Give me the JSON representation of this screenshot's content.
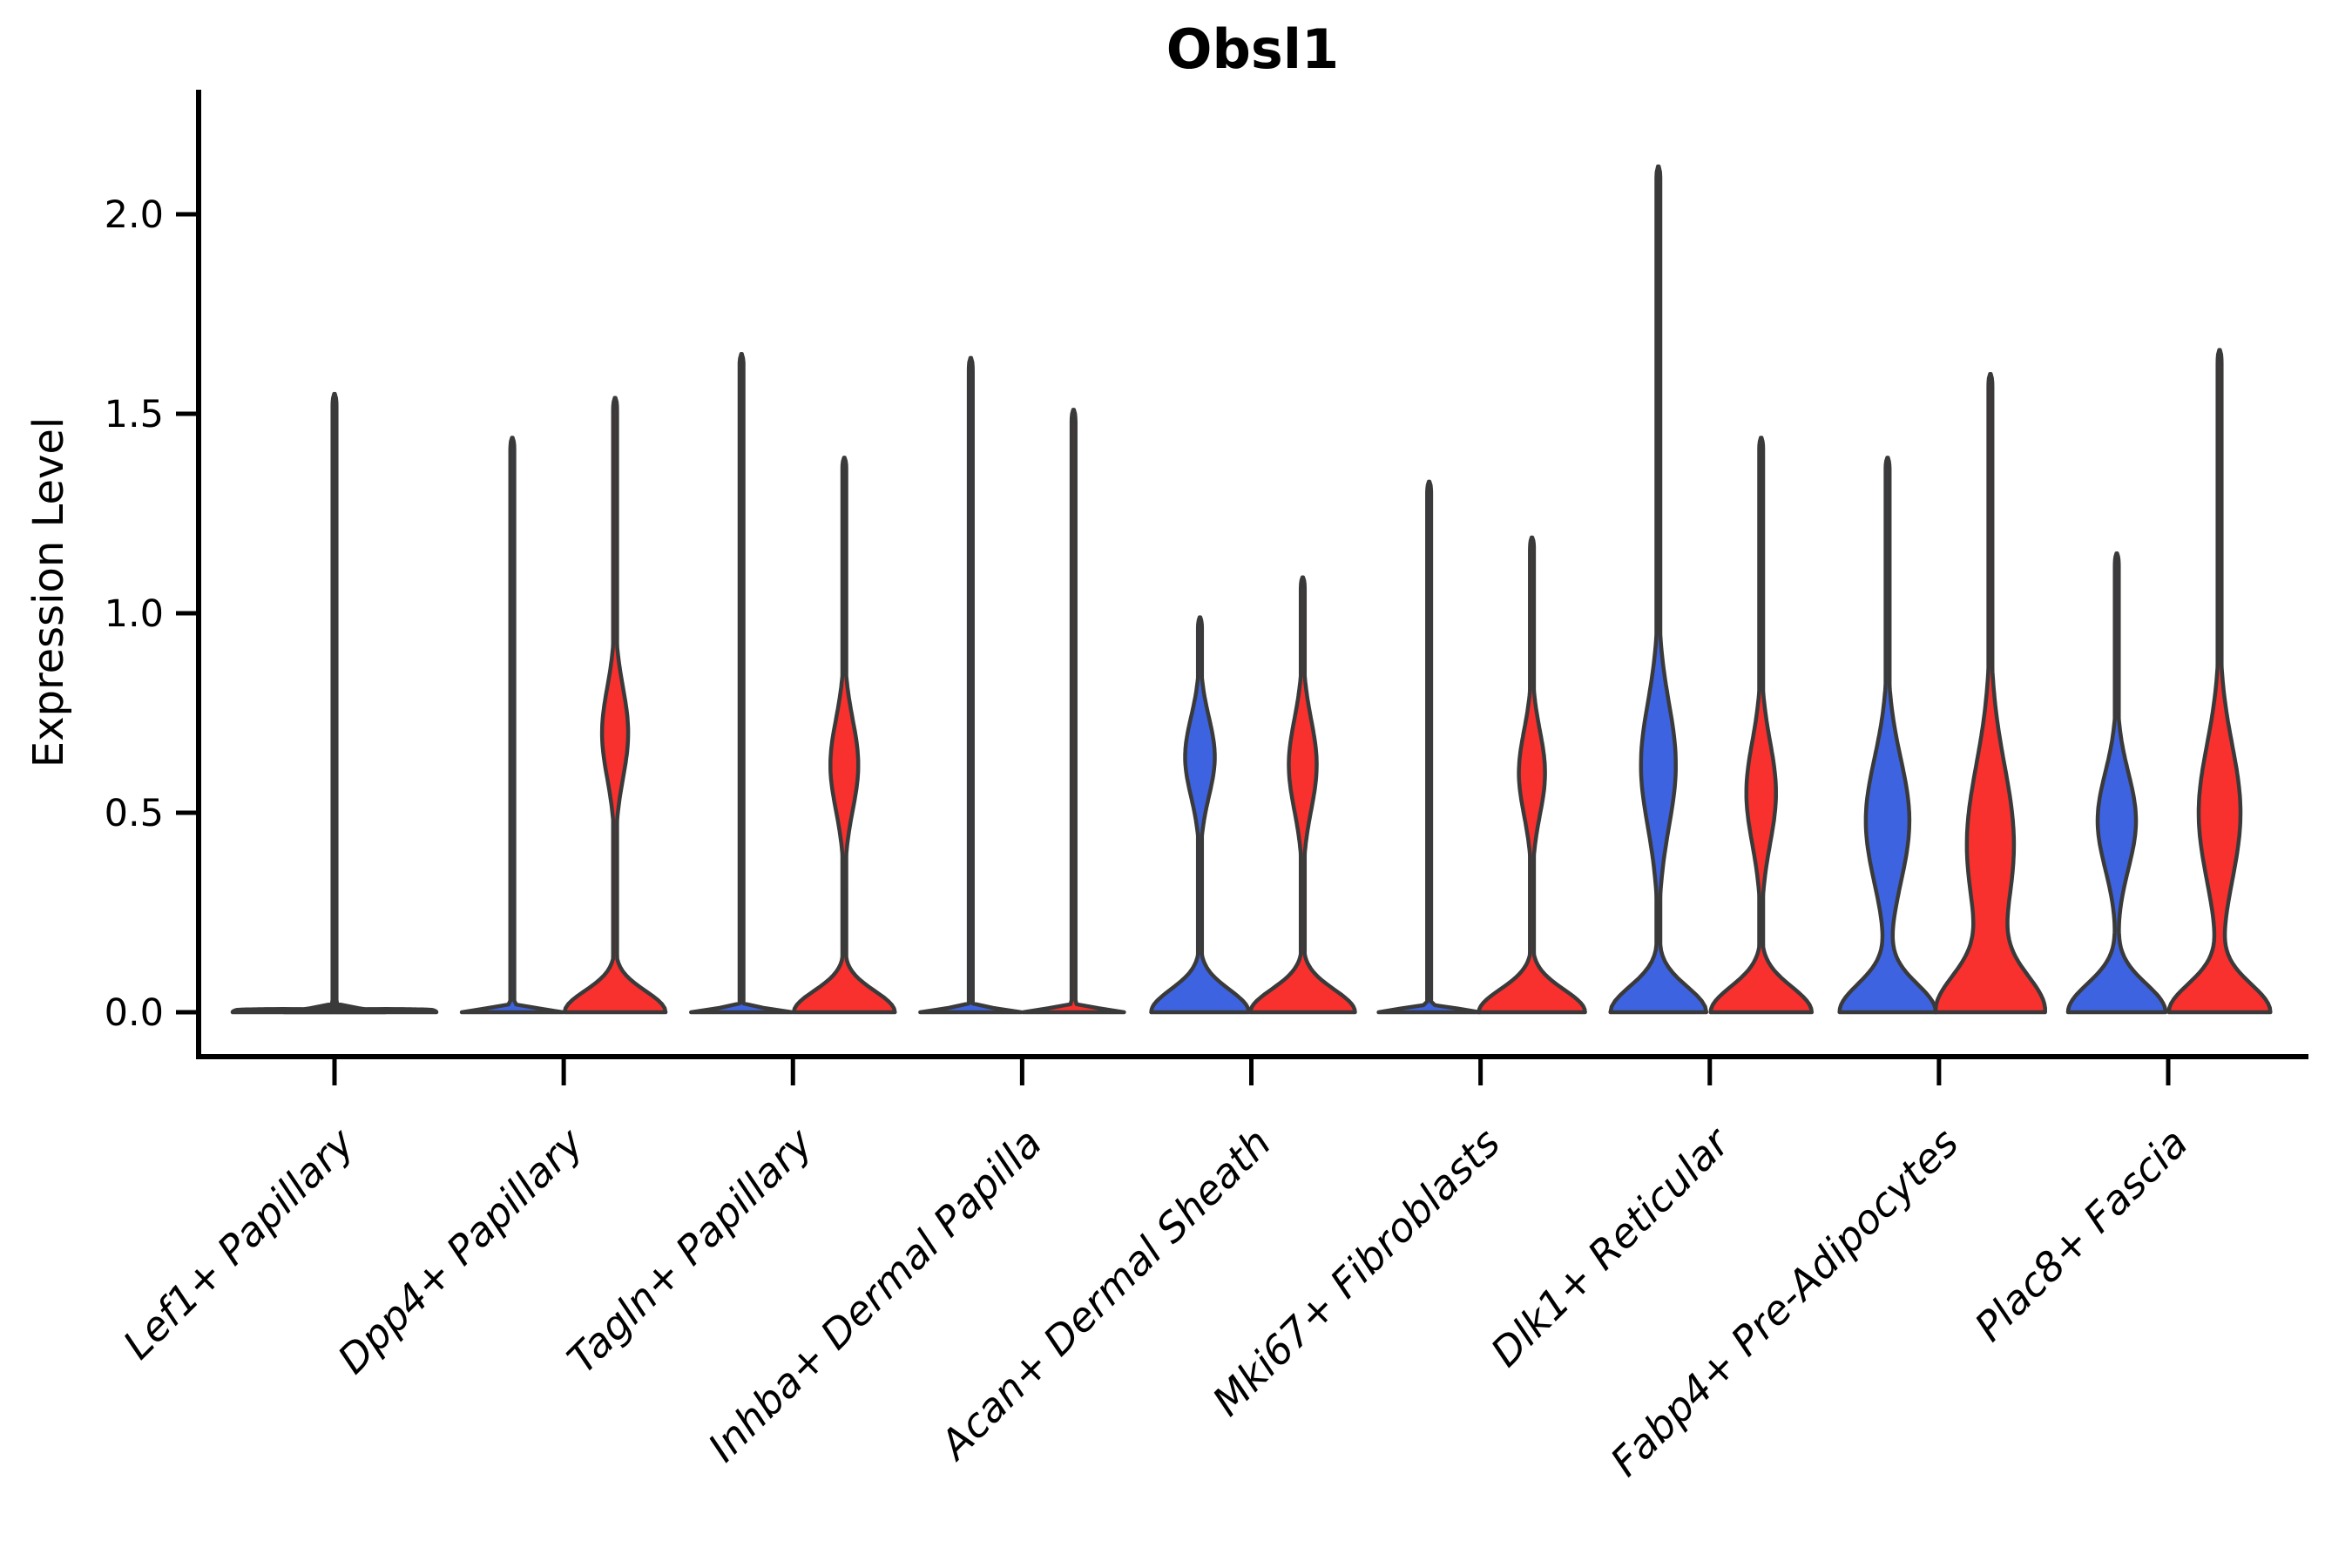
{
  "chart_data": {
    "type": "violin",
    "title": "Obsl1",
    "xlabel": "",
    "ylabel": "Expression Level",
    "ylim": [
      0,
      2.2
    ],
    "grid": false,
    "legend_position": "none",
    "ytick_values": [
      0.0,
      0.5,
      1.0,
      1.5,
      2.0
    ],
    "ytick_labels": [
      "0.0",
      "0.5",
      "1.0",
      "1.5",
      "2.0"
    ],
    "categories": [
      "Lef1+ Papillary",
      "Dpp4+ Papillary",
      "Tagln+ Papillary",
      "Inhba+ Dermal Papilla",
      "Acan+ Dermal Sheath",
      "Mki67+ Fibroblasts",
      "Dlk1+ Reticular",
      "Fabp4+ Pre-Adipocytes",
      "Plac8+ Fascia"
    ],
    "groups": [
      {
        "id": "group1",
        "color": "#3E63E0"
      },
      {
        "id": "group2",
        "color": "#F8302E"
      }
    ],
    "outline_color": "#3A3A3A",
    "series": [
      {
        "name": "group1-max-expression",
        "values": [
          0.0,
          1.44,
          1.65,
          1.64,
          0.99,
          1.33,
          2.12,
          1.39,
          1.15
        ]
      },
      {
        "name": "group2-max-expression",
        "values": [
          0.0,
          1.54,
          1.39,
          1.51,
          1.09,
          1.19,
          1.44,
          1.6,
          1.66
        ]
      }
    ],
    "violins": [
      {
        "category": "Lef1+ Papillary",
        "group": "group1",
        "color": "#3E63E0",
        "offset": -59,
        "max_expression": 0.008,
        "kind": "flat",
        "profile": {
          "base_hw": 58,
          "base_s": 0.02,
          "bulge_hw": 0,
          "bulge_c": 0,
          "bulge_s": 1
        }
      },
      {
        "category": "Lef1+ Papillary",
        "group": "group2",
        "color": "#F8302E",
        "offset": 59,
        "max_expression": 0.008,
        "kind": "flat",
        "profile": {
          "base_hw": 58,
          "base_s": 0.02,
          "bulge_hw": 0,
          "bulge_c": 0,
          "bulge_s": 1
        }
      },
      {
        "category": "Lef1+ Papillary",
        "group": "outlier-spike",
        "color": "#3A3A3A",
        "offset": 0,
        "max_expression": 1.55,
        "kind": "spike",
        "profile": {
          "base_hw": 58,
          "base_s": 0.012,
          "bulge_hw": 0,
          "bulge_c": 0,
          "bulge_s": 1
        }
      },
      {
        "category": "Dpp4+ Papillary",
        "group": "group1",
        "color": "#3E63E0",
        "offset": -59,
        "max_expression": 1.44,
        "kind": "spike",
        "profile": {
          "base_hw": 58,
          "base_s": 0.012,
          "bulge_hw": 0,
          "bulge_c": 0,
          "bulge_s": 1
        }
      },
      {
        "category": "Dpp4+ Papillary",
        "group": "group2",
        "color": "#F8302E",
        "offset": 59,
        "max_expression": 1.54,
        "kind": "body",
        "profile": {
          "base_hw": 58,
          "base_s": 0.075,
          "bulge_hw": 15,
          "bulge_c": 0.7,
          "bulge_s": 0.16
        }
      },
      {
        "category": "Tagln+ Papillary",
        "group": "group1",
        "color": "#3E63E0",
        "offset": -59,
        "max_expression": 1.65,
        "kind": "spike",
        "profile": {
          "base_hw": 58,
          "base_s": 0.012,
          "bulge_hw": 0,
          "bulge_c": 0,
          "bulge_s": 1
        }
      },
      {
        "category": "Tagln+ Papillary",
        "group": "group2",
        "color": "#F8302E",
        "offset": 59,
        "max_expression": 1.39,
        "kind": "body",
        "profile": {
          "base_hw": 58,
          "base_s": 0.075,
          "bulge_hw": 16,
          "bulge_c": 0.62,
          "bulge_s": 0.16
        }
      },
      {
        "category": "Inhba+ Dermal Papilla",
        "group": "group1",
        "color": "#3E63E0",
        "offset": -59,
        "max_expression": 1.64,
        "kind": "spike",
        "profile": {
          "base_hw": 58,
          "base_s": 0.012,
          "bulge_hw": 0,
          "bulge_c": 0,
          "bulge_s": 1
        }
      },
      {
        "category": "Inhba+ Dermal Papilla",
        "group": "group2",
        "color": "#F8302E",
        "offset": 59,
        "max_expression": 1.51,
        "kind": "spike",
        "profile": {
          "base_hw": 58,
          "base_s": 0.012,
          "bulge_hw": 0,
          "bulge_c": 0,
          "bulge_s": 1
        }
      },
      {
        "category": "Acan+ Dermal Sheath",
        "group": "group1",
        "color": "#3E63E0",
        "offset": -59,
        "max_expression": 0.99,
        "kind": "body",
        "profile": {
          "base_hw": 56,
          "base_s": 0.08,
          "bulge_hw": 17,
          "bulge_c": 0.64,
          "bulge_s": 0.14
        }
      },
      {
        "category": "Acan+ Dermal Sheath",
        "group": "group2",
        "color": "#F8302E",
        "offset": 59,
        "max_expression": 1.09,
        "kind": "body",
        "profile": {
          "base_hw": 60,
          "base_s": 0.08,
          "bulge_hw": 16,
          "bulge_c": 0.62,
          "bulge_s": 0.16
        }
      },
      {
        "category": "Mki67+ Fibroblasts",
        "group": "group1",
        "color": "#3E63E0",
        "offset": -59,
        "max_expression": 1.33,
        "kind": "spike",
        "profile": {
          "base_hw": 58,
          "base_s": 0.012,
          "bulge_hw": 0,
          "bulge_c": 0,
          "bulge_s": 1
        }
      },
      {
        "category": "Mki67+ Fibroblasts",
        "group": "group2",
        "color": "#F8302E",
        "offset": 59,
        "max_expression": 1.19,
        "kind": "body",
        "profile": {
          "base_hw": 61,
          "base_s": 0.08,
          "bulge_hw": 15,
          "bulge_c": 0.6,
          "bulge_s": 0.15
        }
      },
      {
        "category": "Dlk1+ Reticular",
        "group": "group1",
        "color": "#3E63E0",
        "offset": -59,
        "max_expression": 2.12,
        "kind": "body",
        "profile": {
          "base_hw": 55,
          "base_s": 0.09,
          "bulge_hw": 20,
          "bulge_c": 0.62,
          "bulge_s": 0.22
        }
      },
      {
        "category": "Dlk1+ Reticular",
        "group": "group2",
        "color": "#F8302E",
        "offset": 59,
        "max_expression": 1.44,
        "kind": "body",
        "profile": {
          "base_hw": 58,
          "base_s": 0.09,
          "bulge_hw": 17,
          "bulge_c": 0.55,
          "bulge_s": 0.18
        }
      },
      {
        "category": "Fabp4+ Pre-Adipocytes",
        "group": "group1",
        "color": "#3E63E0",
        "offset": -59,
        "max_expression": 1.39,
        "kind": "body",
        "profile": {
          "base_hw": 55,
          "base_s": 0.1,
          "bulge_hw": 25,
          "bulge_c": 0.48,
          "bulge_s": 0.22
        }
      },
      {
        "category": "Fabp4+ Pre-Adipocytes",
        "group": "group2",
        "color": "#F8302E",
        "offset": 59,
        "max_expression": 1.6,
        "kind": "body",
        "profile": {
          "base_hw": 60,
          "base_s": 0.13,
          "bulge_hw": 27,
          "bulge_c": 0.42,
          "bulge_s": 0.28
        }
      },
      {
        "category": "Plac8+ Fascia",
        "group": "group1",
        "color": "#3E63E0",
        "offset": -59,
        "max_expression": 1.15,
        "kind": "body",
        "profile": {
          "base_hw": 56,
          "base_s": 0.1,
          "bulge_hw": 22,
          "bulge_c": 0.48,
          "bulge_s": 0.17
        }
      },
      {
        "category": "Plac8+ Fascia",
        "group": "group2",
        "color": "#F8302E",
        "offset": 59,
        "max_expression": 1.66,
        "kind": "body",
        "profile": {
          "base_hw": 58,
          "base_s": 0.1,
          "bulge_hw": 24,
          "bulge_c": 0.5,
          "bulge_s": 0.24
        }
      }
    ]
  }
}
